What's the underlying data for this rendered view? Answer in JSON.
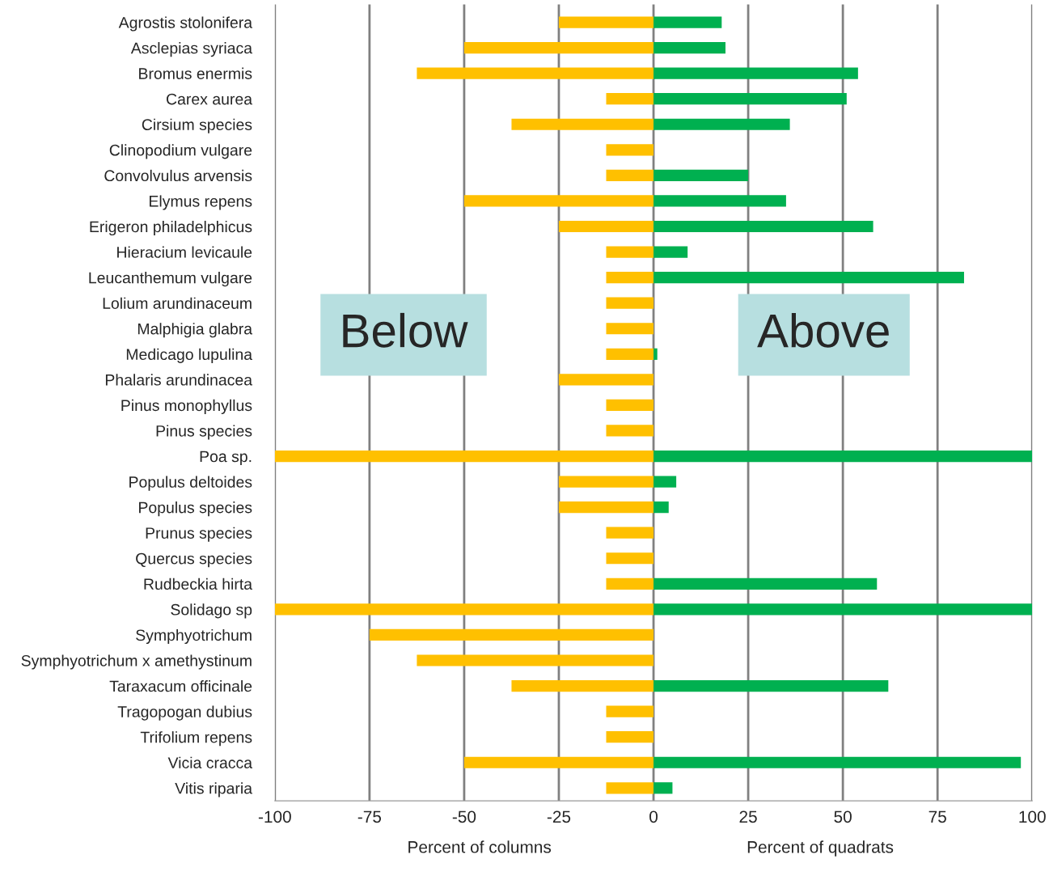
{
  "chart_data": {
    "type": "bar",
    "orientation": "horizontal",
    "categories": [
      "Agrostis stolonifera",
      "Asclepias syriaca",
      "Bromus enermis",
      "Carex aurea",
      "Cirsium species",
      "Clinopodium vulgare",
      "Convolvulus arvensis",
      "Elymus repens",
      "Erigeron philadelphicus",
      "Hieracium levicaule",
      "Leucanthemum vulgare",
      "Lolium arundinaceum",
      "Malphigia glabra",
      "Medicago lupulina",
      "Phalaris arundinacea",
      "Pinus monophyllus",
      "Pinus species",
      "Poa sp.",
      "Populus deltoides",
      "Populus species",
      "Prunus species",
      "Quercus species",
      "Rudbeckia hirta",
      "Solidago sp",
      "Symphyotrichum",
      "Symphyotrichum x amethystinum",
      "Taraxacum officinale",
      "Tragopogan dubius",
      "Trifolium repens",
      "Vicia cracca",
      "Vitis riparia"
    ],
    "series": [
      {
        "color": "#ffc000",
        "values": [
          -25,
          -50,
          -62.5,
          -12.5,
          -37.5,
          -12.5,
          -12.5,
          -50,
          -25,
          -12.5,
          -12.5,
          -12.5,
          -12.5,
          -12.5,
          -25,
          -12.5,
          -12.5,
          -100,
          -25,
          -25,
          -12.5,
          -12.5,
          -12.5,
          -100,
          -75,
          -62.5,
          -37.5,
          -12.5,
          -12.5,
          -50,
          -12.5
        ]
      },
      {
        "color": "#00b050",
        "values": [
          18,
          19,
          54,
          51,
          36,
          null,
          25,
          35,
          58,
          9,
          82,
          null,
          null,
          1,
          null,
          null,
          null,
          100,
          6,
          4,
          null,
          null,
          59,
          100,
          null,
          null,
          62,
          null,
          null,
          97,
          5
        ]
      }
    ],
    "stacked": true,
    "xlim": [
      -100,
      100
    ],
    "xticks": [
      -100,
      -75,
      -50,
      -25,
      0,
      25,
      50,
      75,
      100
    ],
    "xlabel": "Percent of columns",
    "annotations": [
      "Below",
      "Above",
      "Percent of quadrats"
    ],
    "grid": "x",
    "legend": false
  }
}
